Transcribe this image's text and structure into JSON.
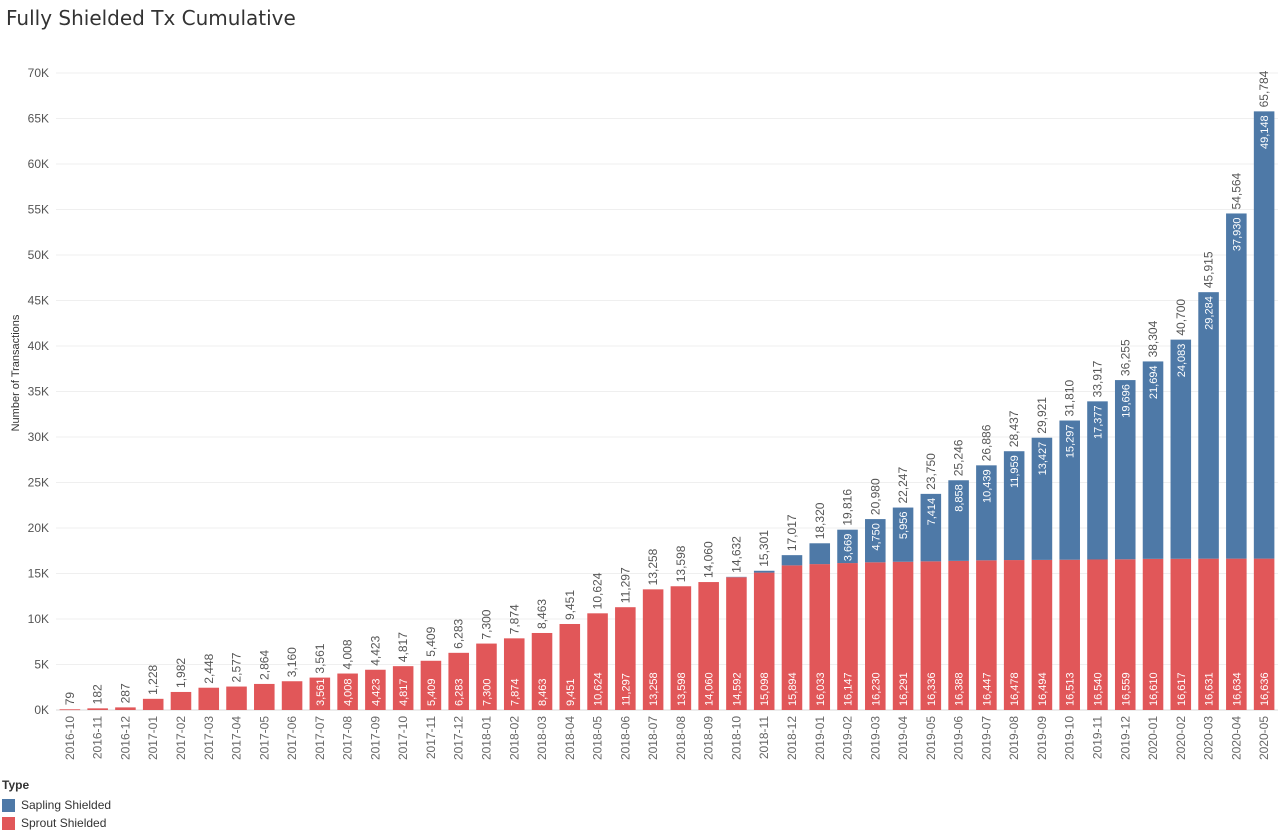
{
  "chart_data": {
    "type": "bar",
    "stacked": true,
    "title": "Fully Shielded Tx Cumulative",
    "ylabel": "Number of Transactions",
    "ylim": [
      0,
      70000
    ],
    "yticks": [
      "0K",
      "5K",
      "10K",
      "15K",
      "20K",
      "25K",
      "30K",
      "35K",
      "40K",
      "45K",
      "50K",
      "55K",
      "60K",
      "65K",
      "70K"
    ],
    "grid": true,
    "legend_position": "bottom-left",
    "legend_title": "Type",
    "categories": [
      "2016-10",
      "2016-11",
      "2016-12",
      "2017-01",
      "2017-02",
      "2017-03",
      "2017-04",
      "2017-05",
      "2017-06",
      "2017-07",
      "2017-08",
      "2017-09",
      "2017-10",
      "2017-11",
      "2017-12",
      "2018-01",
      "2018-02",
      "2018-03",
      "2018-04",
      "2018-05",
      "2018-06",
      "2018-07",
      "2018-08",
      "2018-09",
      "2018-10",
      "2018-11",
      "2018-12",
      "2019-01",
      "2019-02",
      "2019-03",
      "2019-04",
      "2019-05",
      "2019-06",
      "2019-07",
      "2019-08",
      "2019-09",
      "2019-10",
      "2019-11",
      "2019-12",
      "2020-01",
      "2020-02",
      "2020-03",
      "2020-04",
      "2020-05"
    ],
    "series": [
      {
        "name": "Sprout Shielded",
        "color": "#e15759",
        "values": [
          79,
          182,
          287,
          1228,
          1982,
          2448,
          2577,
          2864,
          3160,
          3561,
          4008,
          4423,
          4817,
          5409,
          6283,
          7300,
          7874,
          8463,
          9451,
          10624,
          11297,
          13258,
          13598,
          14060,
          14592,
          15098,
          15894,
          16033,
          16147,
          16230,
          16291,
          16336,
          16388,
          16447,
          16478,
          16494,
          16513,
          16540,
          16559,
          16610,
          16617,
          16631,
          16634,
          16636
        ],
        "labels": [
          "",
          "",
          "",
          "",
          "",
          "",
          "",
          "",
          "",
          "3,561",
          "4,008",
          "4,423",
          "4,817",
          "5,409",
          "6,283",
          "7,300",
          "7,874",
          "8,463",
          "9,451",
          "10,624",
          "11,297",
          "13,258",
          "13,598",
          "14,060",
          "14,592",
          "15,098",
          "15,894",
          "16,033",
          "16,147",
          "16,230",
          "16,291",
          "16,336",
          "16,388",
          "16,447",
          "16,478",
          "16,494",
          "16,513",
          "16,540",
          "16,559",
          "16,610",
          "16,617",
          "16,631",
          "16,634",
          "16,636"
        ]
      },
      {
        "name": "Sapling Shielded",
        "color": "#4e79a7",
        "values": [
          0,
          0,
          0,
          0,
          0,
          0,
          0,
          0,
          0,
          0,
          0,
          0,
          0,
          0,
          0,
          0,
          0,
          0,
          0,
          0,
          0,
          0,
          0,
          0,
          40,
          203,
          1123,
          2287,
          3669,
          4750,
          5956,
          7414,
          8858,
          10439,
          11959,
          13427,
          15297,
          17377,
          19696,
          21694,
          24083,
          29284,
          37930,
          49148
        ],
        "labels": [
          "",
          "",
          "",
          "",
          "",
          "",
          "",
          "",
          "",
          "",
          "",
          "",
          "",
          "",
          "",
          "",
          "",
          "",
          "",
          "",
          "",
          "",
          "",
          "",
          "",
          "",
          "",
          "",
          "3,669",
          "4,750",
          "5,956",
          "7,414",
          "8,858",
          "10,439",
          "11,959",
          "13,427",
          "15,297",
          "17,377",
          "19,696",
          "21,694",
          "24,083",
          "29,284",
          "37,930",
          "49,148"
        ]
      }
    ],
    "totals": [
      "79",
      "182",
      "287",
      "1,228",
      "1,982",
      "2,448",
      "2,577",
      "2,864",
      "3,160",
      "3,561",
      "4,008",
      "4,423",
      "4,817",
      "5,409",
      "6,283",
      "7,300",
      "7,874",
      "8,463",
      "9,451",
      "10,624",
      "11,297",
      "13,258",
      "13,598",
      "14,060",
      "14,632",
      "15,301",
      "17,017",
      "18,320",
      "19,816",
      "20,980",
      "22,247",
      "23,750",
      "25,246",
      "26,886",
      "28,437",
      "29,921",
      "31,810",
      "33,917",
      "36,255",
      "38,304",
      "40,700",
      "45,915",
      "54,564",
      "65,784"
    ]
  }
}
